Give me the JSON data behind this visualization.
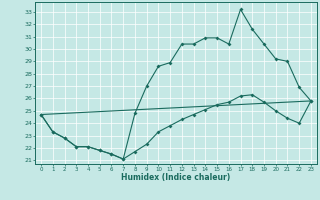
{
  "xlabel": "Humidex (Indice chaleur)",
  "bg_color": "#c5e8e5",
  "line_color": "#1a6b5e",
  "grid_color": "#ffffff",
  "xlim": [
    -0.5,
    23.5
  ],
  "ylim": [
    20.7,
    33.8
  ],
  "yticks": [
    21,
    22,
    23,
    24,
    25,
    26,
    27,
    28,
    29,
    30,
    31,
    32,
    33
  ],
  "xticks": [
    0,
    1,
    2,
    3,
    4,
    5,
    6,
    7,
    8,
    9,
    10,
    11,
    12,
    13,
    14,
    15,
    16,
    17,
    18,
    19,
    20,
    21,
    22,
    23
  ],
  "line1_x": [
    0,
    1,
    2,
    3,
    4,
    5,
    6,
    7,
    8,
    9,
    10,
    11,
    12,
    13,
    14,
    15,
    16,
    17,
    18,
    19,
    20,
    21,
    22,
    23
  ],
  "line1_y": [
    24.7,
    23.3,
    22.8,
    22.1,
    22.1,
    21.8,
    21.5,
    21.1,
    24.8,
    27.0,
    28.6,
    28.9,
    30.4,
    30.4,
    30.9,
    30.9,
    30.4,
    33.2,
    31.6,
    30.4,
    29.2,
    29.0,
    26.9,
    25.8
  ],
  "line2_x": [
    0,
    1,
    2,
    3,
    4,
    5,
    6,
    7,
    8,
    9,
    10,
    11,
    12,
    13,
    14,
    15,
    16,
    17,
    18,
    19,
    20,
    21,
    22,
    23
  ],
  "line2_y": [
    24.7,
    23.3,
    22.8,
    22.1,
    22.1,
    21.8,
    21.5,
    21.1,
    21.7,
    22.3,
    23.3,
    23.8,
    24.3,
    24.7,
    25.1,
    25.5,
    25.7,
    26.2,
    26.3,
    25.7,
    25.0,
    24.4,
    24.0,
    25.8
  ],
  "line3_x": [
    0,
    23
  ],
  "line3_y": [
    24.7,
    25.8
  ]
}
